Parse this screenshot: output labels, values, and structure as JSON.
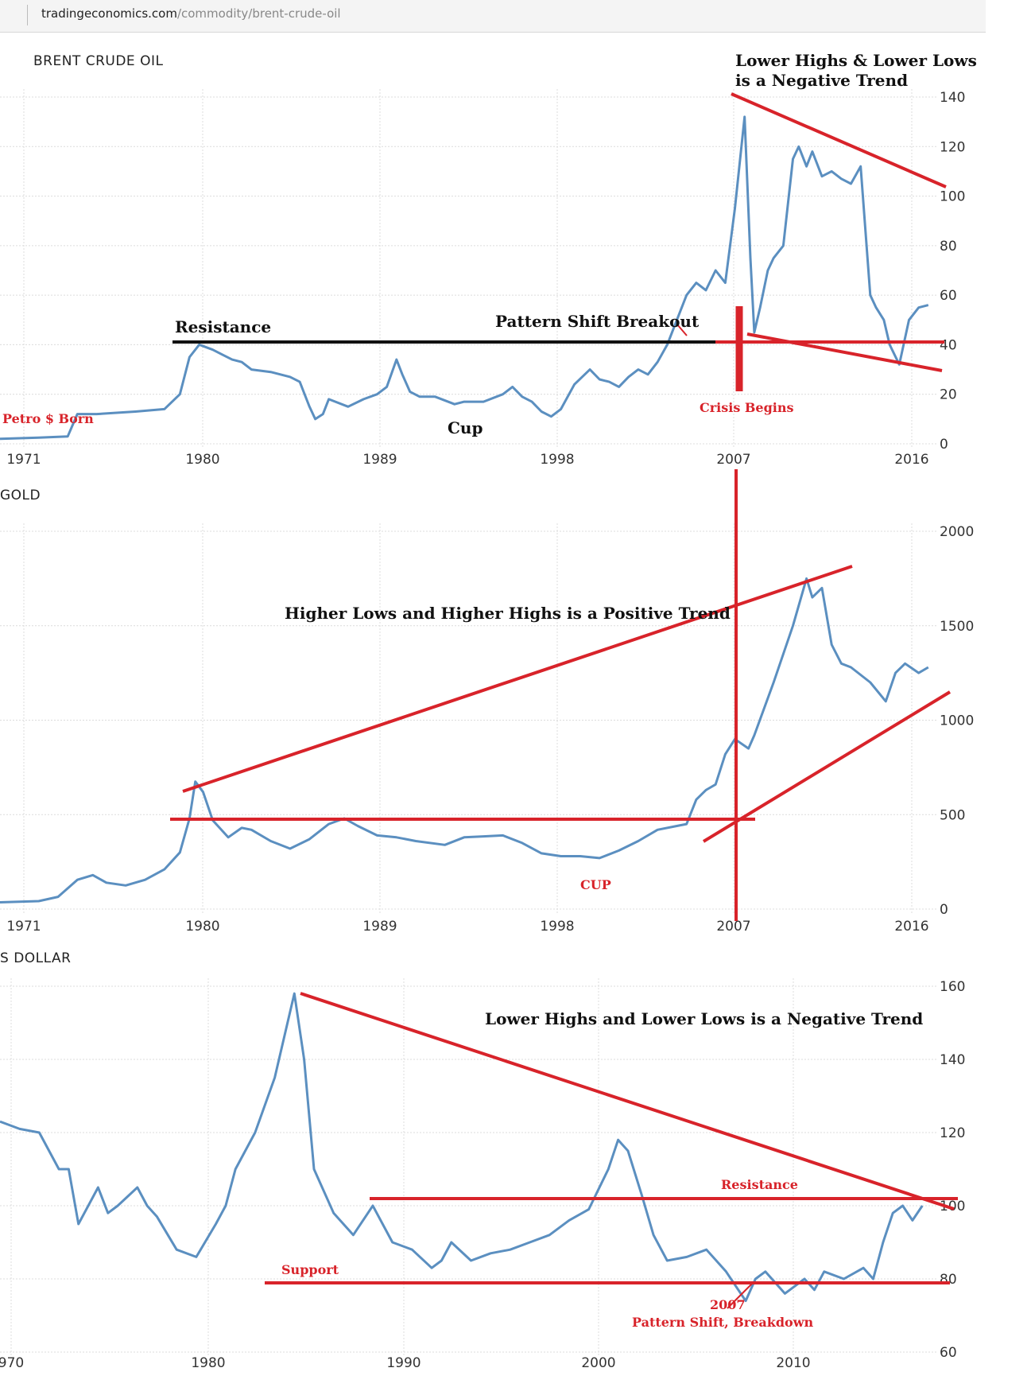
{
  "browser": {
    "url_domain": "tradingeconomics.com",
    "url_path": "/commodity/brent-crude-oil"
  },
  "colors": {
    "series": "#5b8fc0",
    "annotation_red": "#d8232a",
    "annotation_black": "#111111",
    "grid": "#dcdcdc"
  },
  "chart_data": [
    {
      "id": "oil",
      "type": "line",
      "title": "BRENT CRUDE OIL",
      "x_ticks": [
        "1971",
        "1980",
        "1989",
        "1998",
        "2007",
        "2016"
      ],
      "y_ticks": [
        "0",
        "20",
        "40",
        "60",
        "80",
        "100",
        "120",
        "140"
      ],
      "xlim": [
        1970,
        2018.5
      ],
      "ylim": [
        0,
        140
      ],
      "grid": true,
      "series": [
        {
          "x": [
            1970,
            1972,
            1973.5,
            1974,
            1975,
            1977,
            1978.5,
            1979.3,
            1979.8,
            1980.3,
            1981,
            1981.5,
            1982,
            1982.5,
            1983,
            1984,
            1985,
            1985.5,
            1986,
            1986.3,
            1986.7,
            1987,
            1988,
            1988.8,
            1989.5,
            1990,
            1990.5,
            1990.8,
            1991.2,
            1991.7,
            1992.5,
            1993.5,
            1994,
            1995,
            1996,
            1996.5,
            1997,
            1997.5,
            1998,
            1998.5,
            1999,
            1999.7,
            2000.5,
            2001,
            2001.5,
            2002,
            2002.5,
            2003,
            2003.5,
            2004,
            2004.5,
            2005,
            2005.5,
            2006,
            2006.5,
            2007,
            2007.5,
            2008,
            2008.5,
            2008.8,
            2009,
            2009.3,
            2009.7,
            2010,
            2010.5,
            2011,
            2011.3,
            2011.7,
            2012,
            2012.5,
            2013,
            2013.5,
            2014,
            2014.5,
            2015,
            2015.3,
            2015.7,
            2016,
            2016.5,
            2017,
            2017.5,
            2018
          ],
          "y": [
            2,
            2.5,
            3,
            12,
            12,
            13,
            14,
            20,
            35,
            40,
            38,
            36,
            34,
            33,
            30,
            29,
            27,
            25,
            15,
            10,
            12,
            18,
            15,
            18,
            20,
            23,
            34,
            28,
            21,
            19,
            19,
            16,
            17,
            17,
            20,
            23,
            19,
            17,
            13,
            11,
            14,
            24,
            30,
            26,
            25,
            23,
            27,
            30,
            28,
            33,
            40,
            50,
            60,
            65,
            62,
            70,
            65,
            95,
            132,
            75,
            45,
            55,
            70,
            75,
            80,
            115,
            120,
            112,
            118,
            108,
            110,
            107,
            105,
            112,
            60,
            55,
            50,
            40,
            32,
            50,
            55,
            56
          ]
        }
      ]
    },
    {
      "id": "gold",
      "type": "line",
      "title": "GOLD",
      "x_ticks": [
        "1971",
        "1980",
        "1989",
        "1998",
        "2007",
        "2016"
      ],
      "y_ticks": [
        "0",
        "500",
        "1000",
        "1500",
        "2000"
      ],
      "xlim": [
        1970,
        2018.5
      ],
      "ylim": [
        0,
        2000
      ],
      "grid": true,
      "series": [
        {
          "x": [
            1970,
            1972,
            1973,
            1974,
            1974.8,
            1975.5,
            1976.5,
            1977.5,
            1978.5,
            1979.3,
            1979.8,
            1980.1,
            1980.5,
            1981,
            1981.8,
            1982.5,
            1983,
            1984,
            1985,
            1986,
            1987,
            1987.8,
            1988.5,
            1989.5,
            1990.5,
            1991.5,
            1993,
            1994,
            1995,
            1996,
            1997,
            1998,
            1999,
            2000,
            2001,
            2002,
            2003,
            2004,
            2005,
            2005.5,
            2006,
            2006.5,
            2007,
            2007.5,
            2008,
            2008.7,
            2009,
            2010,
            2011,
            2011.7,
            2012,
            2012.5,
            2013,
            2013.5,
            2014,
            2015,
            2015.8,
            2016.3,
            2016.8,
            2017.5,
            2018
          ],
          "y": [
            36,
            42,
            65,
            155,
            180,
            140,
            125,
            155,
            210,
            300,
            480,
            675,
            620,
            470,
            380,
            430,
            420,
            360,
            320,
            370,
            450,
            480,
            440,
            390,
            380,
            360,
            340,
            380,
            385,
            390,
            350,
            295,
            280,
            280,
            270,
            310,
            360,
            420,
            440,
            450,
            580,
            630,
            660,
            820,
            900,
            850,
            920,
            1200,
            1500,
            1750,
            1650,
            1700,
            1400,
            1300,
            1280,
            1200,
            1100,
            1250,
            1300,
            1250,
            1280
          ]
        }
      ]
    },
    {
      "id": "usd",
      "type": "line",
      "title": "S DOLLAR",
      "x_ticks": [
        "970",
        "1980",
        "1990",
        "2000",
        "2010"
      ],
      "y_ticks": [
        "60",
        "80",
        "100",
        "120",
        "140",
        "160"
      ],
      "xlim": [
        1970,
        2017.8
      ],
      "ylim": [
        60,
        160
      ],
      "grid": true,
      "series": [
        {
          "x": [
            1970,
            1971,
            1972,
            1973,
            1973.5,
            1974,
            1975,
            1975.5,
            1976,
            1977,
            1977.5,
            1978,
            1979,
            1980,
            1981,
            1981.5,
            1982,
            1983,
            1984,
            1985,
            1985.5,
            1986,
            1987,
            1988,
            1989,
            1990,
            1991,
            1992,
            1992.5,
            1993,
            1994,
            1995,
            1996,
            1997,
            1998,
            1999,
            2000,
            2001,
            2001.5,
            2002,
            2002.7,
            2003.3,
            2004,
            2005,
            2006,
            2007,
            2007.5,
            2008,
            2008.5,
            2009,
            2010,
            2011,
            2011.5,
            2012,
            2013,
            2014,
            2014.5,
            2015,
            2015.5,
            2016,
            2016.5,
            2017
          ],
          "y": [
            123,
            121,
            120,
            110,
            110,
            95,
            105,
            98,
            100,
            105,
            100,
            97,
            88,
            86,
            95,
            100,
            110,
            120,
            135,
            158,
            140,
            110,
            98,
            92,
            100,
            90,
            88,
            83,
            85,
            90,
            85,
            87,
            88,
            90,
            92,
            96,
            99,
            110,
            118,
            115,
            103,
            92,
            85,
            86,
            88,
            82,
            78,
            74,
            80,
            82,
            76,
            80,
            77,
            82,
            80,
            83,
            80,
            90,
            98,
            100,
            96,
            100
          ]
        }
      ]
    }
  ],
  "annotations": {
    "oil": {
      "lower_highs": "Lower Highs & Lower Lows",
      "negative_trend": "is a Negative Trend",
      "resistance": "Resistance",
      "breakout": "Pattern Shift Breakout",
      "crisis": "Crisis Begins",
      "petro": "Petro $ Born",
      "cup": "Cup"
    },
    "gold": {
      "trend": "Higher Lows and Higher Highs is a Positive Trend",
      "cup": "CUP"
    },
    "usd": {
      "trend": "Lower Highs and Lower Lows is a Negative Trend",
      "resistance": "Resistance",
      "support": "Support",
      "year": "2007",
      "breakdown": "Pattern Shift, Breakdown"
    }
  }
}
